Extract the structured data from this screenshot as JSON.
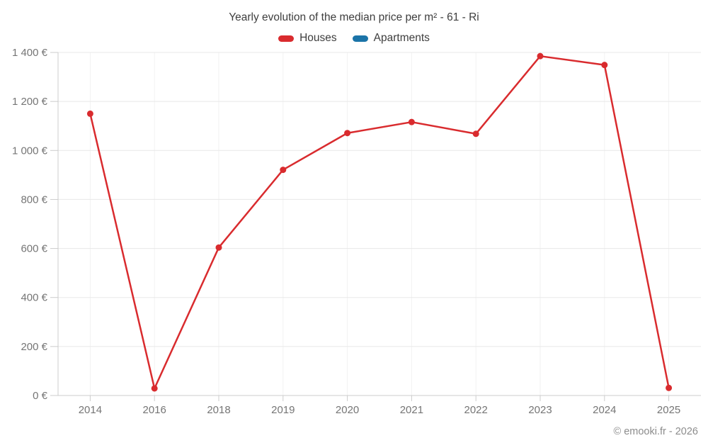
{
  "chart_data": {
    "type": "line",
    "title": "Yearly evolution of the median price per m² - 61 - Ri",
    "categories": [
      "2014",
      "2016",
      "2018",
      "2019",
      "2020",
      "2021",
      "2022",
      "2023",
      "2024",
      "2025"
    ],
    "series": [
      {
        "name": "Houses",
        "color": "#d92b2e",
        "values": [
          1150,
          29,
          604,
          921,
          1071,
          1116,
          1068,
          1385,
          1349,
          31
        ]
      },
      {
        "name": "Apartments",
        "color": "#1b74a8",
        "values": []
      }
    ],
    "ylim": [
      0,
      1400
    ],
    "ytick_step": 200,
    "ytick_suffix": "€",
    "grid": true,
    "legend_position": "top",
    "marker": "circle"
  },
  "legend": {
    "houses_label": "Houses",
    "apartments_label": "Apartments"
  },
  "footer": {
    "copyright": "© emooki.fr - 2026"
  },
  "colors": {
    "houses": "#d92b2e",
    "apartments": "#1b74a8",
    "h_gridline": "#e8e8e8",
    "v_gridline": "#f2f2f2",
    "axis": "#cccccc",
    "tick_text": "#757575",
    "title_text": "#3e3e3e",
    "footer_text": "#8c8c8c"
  }
}
